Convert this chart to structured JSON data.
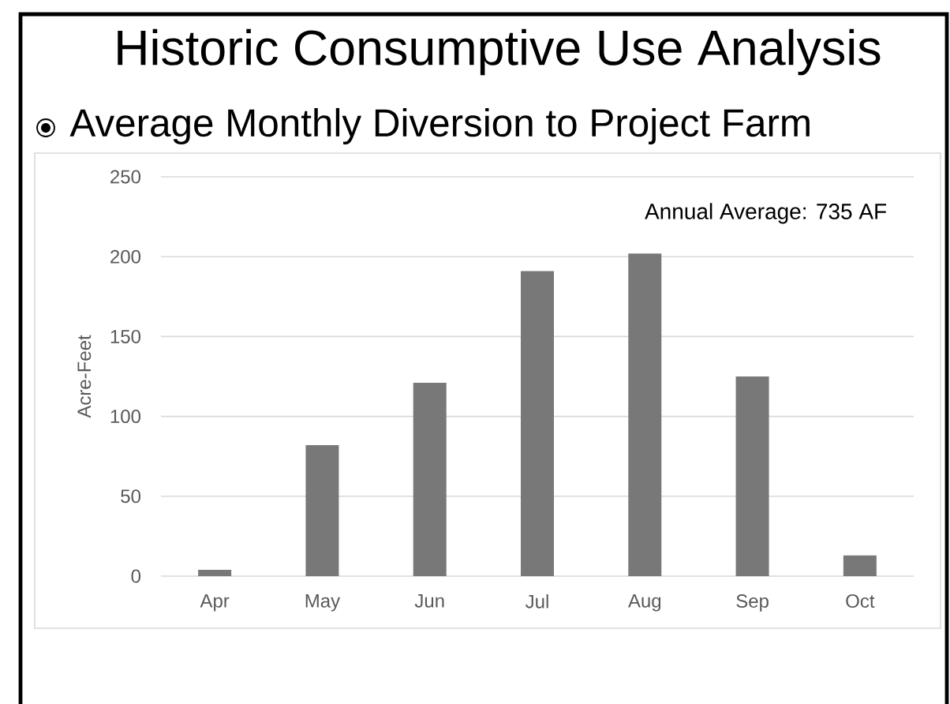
{
  "chart_data": {
    "type": "bar",
    "title": "Historic Consumptive Use Analysis",
    "subtitle": "Average Monthly Diversion to Project Farm",
    "ylabel": "Acre-Feet",
    "annotations": [
      "Annual Average: 735 AF"
    ],
    "categories": [
      "Apr",
      "May",
      "Jun",
      "Jul",
      "Aug",
      "Sep",
      "Oct"
    ],
    "values": [
      4,
      82,
      121,
      191,
      202,
      125,
      13
    ],
    "color": "#787878",
    "ylim": [
      0,
      250
    ],
    "yticks": [
      0,
      50,
      100,
      150,
      200,
      250
    ],
    "grid": "y"
  }
}
